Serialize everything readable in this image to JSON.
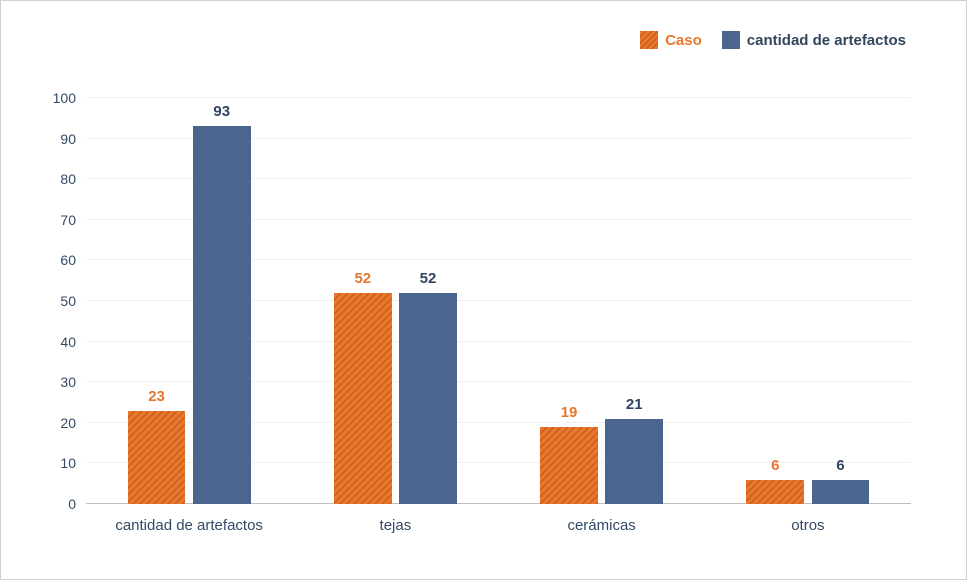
{
  "chart": {
    "type": "bar",
    "background_color": "#ffffff",
    "border_color": "#d0d0d0",
    "grid_color": "#f0f0f0",
    "axis_text_color": "#334a66",
    "ylim": [
      0,
      105.4
    ],
    "yticks": [
      0,
      10,
      20,
      30,
      40,
      50,
      60,
      70,
      80,
      90,
      100
    ],
    "ytick_labels": [
      "0",
      "10",
      "20",
      "30",
      "40",
      "50",
      "60",
      "70",
      "80",
      "90",
      "100"
    ],
    "categories": [
      "cantidad de artefactos",
      "tejas",
      "cerámicas",
      "otros"
    ],
    "series": [
      {
        "name": "Caso",
        "color": "#e8762c",
        "hatch": true,
        "hatch_stroke": "#c45a16",
        "values": [
          23,
          52,
          19,
          6
        ],
        "label_color": "#e8762c"
      },
      {
        "name": "cantidad de artefactos",
        "color": "#4a668e",
        "hatch": false,
        "values": [
          93,
          52,
          21,
          6
        ],
        "label_color": "#31455f"
      }
    ],
    "bar_width_pct": 7.0,
    "bar_gap_pct": 0.9,
    "label_fontsize": 15,
    "value_fontsize": 15,
    "legend_fontsize": 15
  }
}
